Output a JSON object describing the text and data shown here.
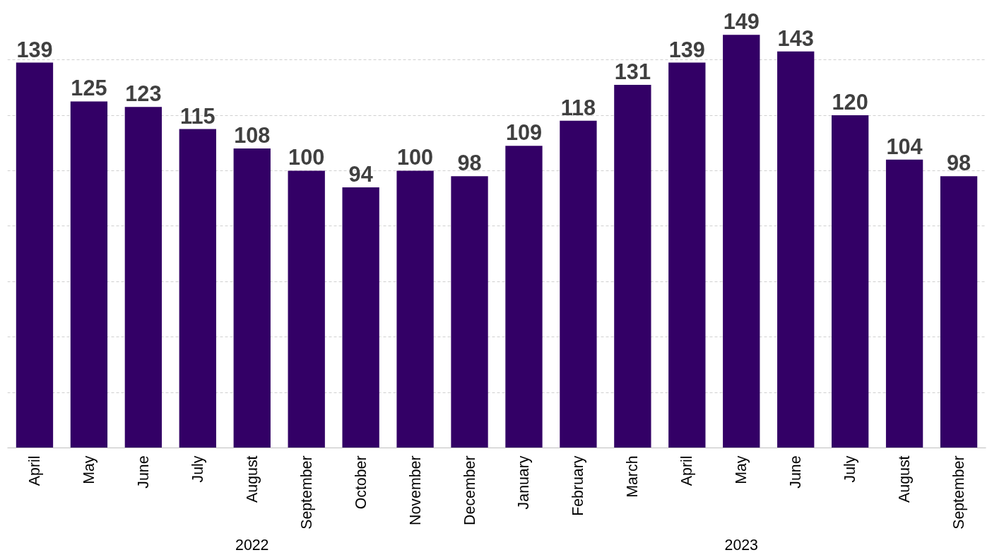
{
  "chart_data": {
    "type": "bar",
    "categories": [
      "April",
      "May",
      "June",
      "July",
      "August",
      "September",
      "October",
      "November",
      "December",
      "January",
      "February",
      "March",
      "April",
      "May",
      "June",
      "July",
      "August",
      "September"
    ],
    "values": [
      139,
      125,
      123,
      115,
      108,
      100,
      94,
      100,
      98,
      109,
      118,
      131,
      139,
      149,
      143,
      120,
      104,
      98
    ],
    "color": "#330066",
    "data_labels": true,
    "yticks": [
      {
        "value": 20,
        "label": null
      },
      {
        "value": 40,
        "label": null
      },
      {
        "value": 60,
        "label": null
      },
      {
        "value": 80,
        "label": null
      },
      {
        "value": 100,
        "label": null
      },
      {
        "value": 120,
        "label": null
      },
      {
        "value": 140,
        "label": null
      }
    ],
    "grid": "y",
    "tick_labels": "x",
    "annotations": [
      "2022",
      "2023"
    ]
  }
}
